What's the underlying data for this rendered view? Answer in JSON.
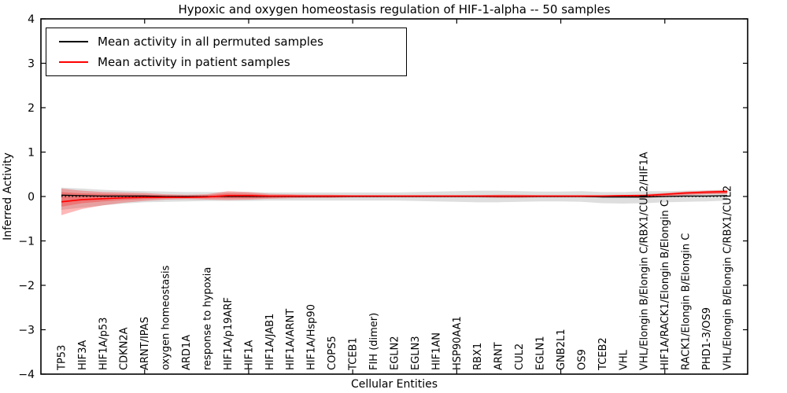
{
  "chart_data": {
    "type": "line",
    "title": "Hypoxic and oxygen homeostasis regulation of HIF-1-alpha -- 50 samples",
    "xlabel": "Cellular Entities",
    "ylabel": "Inferred Activity",
    "ylim": [
      -4,
      4
    ],
    "yticks": [
      4,
      3,
      2,
      1,
      0,
      -1,
      -2,
      -3,
      -4
    ],
    "ytick_labels": [
      "4",
      "3",
      "2",
      "1",
      "0",
      "−1",
      "−2",
      "−3",
      "−4"
    ],
    "x_major_tick_positions": [
      4,
      9,
      14,
      19,
      24,
      29
    ],
    "grid": false,
    "legend_position": "upper left",
    "categories": [
      "TP53",
      "HIF3A",
      "HIF1A/p53",
      "CDKN2A",
      "ARNT/IPAS",
      "oxygen homeostasis",
      "ARD1A",
      "response to hypoxia",
      "HIF1A/p19ARF",
      "HIF1A",
      "HIF1A/JAB1",
      "HIF1A/ARNT",
      "HIF1A/Hsp90",
      "COPS5",
      "TCEB1",
      "FIH (dimer)",
      "EGLN2",
      "EGLN3",
      "HIF1AN",
      "HSP90AA1",
      "RBX1",
      "ARNT",
      "CUL2",
      "EGLN1",
      "GNB2L1",
      "OS9",
      "TCEB2",
      "VHL",
      "VHL/Elongin B/Elongin C/RBX1/CUL2/HIF1A",
      "HIF1A/RACK1/Elongin B/Elongin C",
      "RACK1/Elongin B/Elongin C",
      "PHD1-3/OS9",
      "VHL/Elongin B/Elongin C/RBX1/CUL2"
    ],
    "series": [
      {
        "name": "Mean activity in all permuted samples",
        "color": "#000000",
        "values": [
          0.03,
          0.02,
          0.01,
          0.01,
          0.01,
          0,
          0,
          0,
          0,
          0,
          0,
          0,
          0,
          0,
          0,
          0,
          0,
          0,
          0,
          0,
          0,
          0,
          0,
          0,
          0,
          0,
          -0.01,
          -0.01,
          -0.01,
          0,
          0.01,
          0.01,
          0.02
        ]
      },
      {
        "name": "Mean activity in patient samples",
        "color": "#ff0000",
        "values": [
          -0.12,
          -0.07,
          -0.05,
          -0.03,
          -0.02,
          -0.02,
          -0.02,
          -0.01,
          0.02,
          0.02,
          0.01,
          0.01,
          0.01,
          0.01,
          0.01,
          0.01,
          0.01,
          0.01,
          0.01,
          0.01,
          0.01,
          0.01,
          0.01,
          0.01,
          0.01,
          0.01,
          0.01,
          0.02,
          0.02,
          0.05,
          0.08,
          0.1,
          0.11
        ]
      }
    ],
    "bands": [
      {
        "name": "permuted-std",
        "color": "#888888",
        "opacity": 0.28,
        "upper": [
          0.2,
          0.18,
          0.15,
          0.13,
          0.12,
          0.11,
          0.1,
          0.1,
          0.1,
          0.1,
          0.09,
          0.09,
          0.09,
          0.09,
          0.09,
          0.09,
          0.09,
          0.1,
          0.11,
          0.12,
          0.13,
          0.13,
          0.12,
          0.11,
          0.11,
          0.12,
          0.1,
          0.1,
          0.12,
          0.12,
          0.13,
          0.14,
          0.15
        ],
        "lower": [
          -0.3,
          -0.25,
          -0.2,
          -0.16,
          -0.13,
          -0.12,
          -0.11,
          -0.1,
          -0.1,
          -0.1,
          -0.09,
          -0.09,
          -0.09,
          -0.09,
          -0.09,
          -0.09,
          -0.09,
          -0.1,
          -0.11,
          -0.12,
          -0.13,
          -0.13,
          -0.12,
          -0.11,
          -0.11,
          -0.12,
          -0.15,
          -0.16,
          -0.15,
          -0.13,
          -0.12,
          -0.11,
          -0.09
        ]
      },
      {
        "name": "patient-std-outer",
        "color": "#ff0000",
        "opacity": 0.28,
        "upper": [
          0.18,
          0.13,
          0.1,
          0.09,
          0.08,
          0.05,
          0.04,
          0.05,
          0.12,
          0.1,
          0.06,
          0.05,
          0.04,
          0.04,
          0.03,
          0.03,
          0.03,
          0.03,
          0.03,
          0.03,
          0.03,
          0.04,
          0.04,
          0.03,
          0.03,
          0.03,
          0.03,
          0.03,
          0.05,
          0.08,
          0.11,
          0.13,
          0.15
        ],
        "lower": [
          -0.42,
          -0.28,
          -0.2,
          -0.14,
          -0.1,
          -0.07,
          -0.06,
          -0.07,
          -0.08,
          -0.07,
          -0.05,
          -0.04,
          -0.03,
          -0.03,
          -0.02,
          -0.02,
          -0.02,
          -0.02,
          -0.02,
          -0.02,
          -0.02,
          -0.03,
          -0.03,
          -0.02,
          -0.02,
          -0.02,
          -0.02,
          -0.02,
          -0.03,
          -0.01,
          0.03,
          0.05,
          0.06
        ]
      },
      {
        "name": "patient-std-inner",
        "color": "#ff0000",
        "opacity": 0.26,
        "upper": [
          0.1,
          0.07,
          0.06,
          0.05,
          0.04,
          0.03,
          0.02,
          0.03,
          0.07,
          0.06,
          0.03,
          0.03,
          0.02,
          0.02,
          0.02,
          0.02,
          0.02,
          0.02,
          0.02,
          0.02,
          0.02,
          0.02,
          0.02,
          0.02,
          0.02,
          0.02,
          0.02,
          0.02,
          0.03,
          0.05,
          0.09,
          0.11,
          0.13
        ],
        "lower": [
          -0.23,
          -0.15,
          -0.11,
          -0.08,
          -0.06,
          -0.04,
          -0.03,
          -0.04,
          -0.04,
          -0.04,
          -0.03,
          -0.02,
          -0.02,
          -0.02,
          -0.01,
          -0.01,
          -0.01,
          -0.01,
          -0.01,
          -0.01,
          -0.01,
          -0.02,
          -0.02,
          -0.01,
          -0.01,
          -0.01,
          -0.01,
          -0.01,
          -0.02,
          0.01,
          0.05,
          0.06,
          0.07
        ]
      }
    ],
    "zero_line": {
      "style": "dotted",
      "color": "#000000",
      "y": 0
    }
  }
}
